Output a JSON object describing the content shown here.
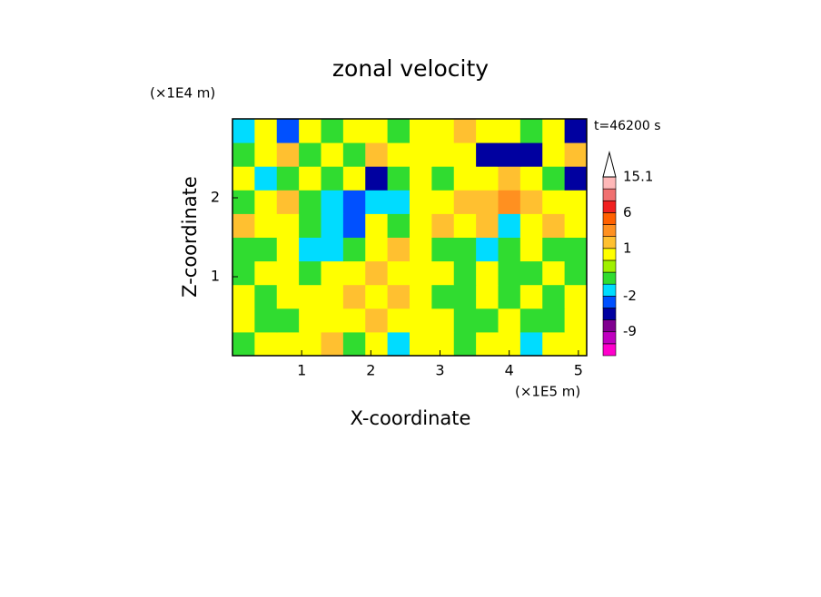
{
  "chart_data": {
    "type": "contour",
    "title": "zonal velocity",
    "xlabel": "X-coordinate",
    "ylabel": "Z-coordinate",
    "xunit": "(×1E5 m)",
    "yunit": "(×1E4 m)",
    "annotation": "t=46200 s",
    "xlim": [
      0,
      5.12
    ],
    "ylim": [
      0,
      3
    ],
    "xticks": [
      1,
      2,
      3,
      4,
      5
    ],
    "yticks": [
      1,
      2
    ],
    "x": [
      0.16,
      0.48,
      0.8,
      1.12,
      1.44,
      1.76,
      2.08,
      2.4,
      2.72,
      3.04,
      3.36,
      3.68,
      4.0,
      4.32,
      4.64,
      4.96
    ],
    "y": [
      0.15,
      0.45,
      0.75,
      1.05,
      1.35,
      1.65,
      1.95,
      2.25,
      2.55,
      2.85
    ],
    "values": [
      [
        -0.5,
        0.7,
        0.7,
        0.7,
        1.5,
        -0.5,
        0.7,
        -1.5,
        0.7,
        0.7,
        -0.5,
        0.7,
        0.7,
        -1.5,
        0.7,
        0.7
      ],
      [
        0.7,
        -0.5,
        -0.5,
        0.7,
        0.7,
        0.7,
        1.5,
        0.7,
        0.7,
        0.7,
        -0.5,
        -0.5,
        0.7,
        -0.5,
        -0.5,
        0.7
      ],
      [
        0.7,
        -0.5,
        0.7,
        0.7,
        0.7,
        1.5,
        0.7,
        1.5,
        0.7,
        -0.5,
        -0.5,
        0.7,
        -0.5,
        0.7,
        -0.5,
        0.7
      ],
      [
        -0.5,
        0.7,
        0.7,
        -0.5,
        0.7,
        0.7,
        1.5,
        0.7,
        0.7,
        0.7,
        -0.5,
        0.7,
        -0.5,
        -0.5,
        0.7,
        -0.5
      ],
      [
        -0.5,
        -0.5,
        0.7,
        -1.5,
        -1.5,
        -0.5,
        0.7,
        1.5,
        0.7,
        -0.5,
        -0.5,
        -1.5,
        -0.5,
        0.7,
        -0.5,
        -0.5
      ],
      [
        1.5,
        0.7,
        0.7,
        -0.5,
        -1.5,
        -2.5,
        0.7,
        -0.5,
        0.7,
        1.5,
        0.7,
        1.5,
        -1.5,
        0.7,
        1.5,
        0.7
      ],
      [
        -0.5,
        0.7,
        1.5,
        -0.5,
        -1.5,
        -2.5,
        -1.5,
        -1.5,
        0.7,
        0.7,
        1.5,
        1.5,
        3,
        1.5,
        0.7,
        0.7
      ],
      [
        0.7,
        -1.5,
        -0.5,
        0.7,
        -0.5,
        0.7,
        -4,
        -0.5,
        0.7,
        -0.5,
        0.7,
        0.7,
        1.5,
        0.7,
        -0.5,
        -4
      ],
      [
        -0.5,
        0.7,
        1.5,
        -0.5,
        0.7,
        -0.5,
        1.5,
        0.7,
        0.7,
        0.7,
        0.7,
        -4,
        -4,
        -4,
        0.7,
        1.5
      ],
      [
        -1.5,
        0.7,
        -2.5,
        0.7,
        -0.5,
        0.7,
        0.7,
        -0.5,
        0.7,
        0.7,
        1.5,
        0.7,
        0.7,
        -0.5,
        0.7,
        -4
      ]
    ],
    "levels": [
      -15,
      -12,
      -9,
      -6,
      -3,
      -2,
      -1,
      0,
      0.5,
      1,
      2,
      4,
      6,
      9,
      12,
      15.1
    ],
    "colors": [
      "#ff00cc",
      "#c000c0",
      "#800090",
      "#0000a0",
      "#0050ff",
      "#00dcff",
      "#30dc30",
      "#a0f000",
      "#ffff00",
      "#ffc030",
      "#ff9020",
      "#ff6000",
      "#f02020",
      "#f07070",
      "#ffb8b8"
    ],
    "colorbar_ticks": [
      15.1,
      6,
      1,
      -2,
      -9
    ]
  }
}
